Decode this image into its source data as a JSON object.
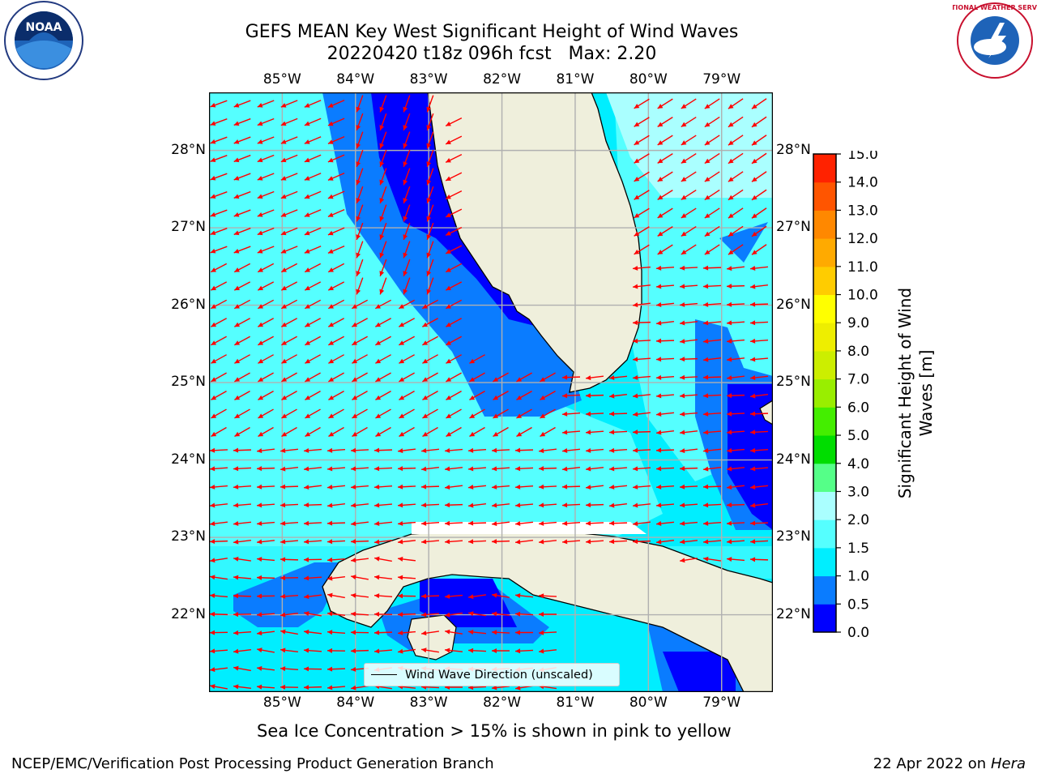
{
  "title": {
    "line1": "GEFS MEAN Key West Significant Height of Wind Waves",
    "line2": "20220420 t18z 096h fcst   Max: 2.20"
  },
  "logos": {
    "left": {
      "name": "noaa-logo",
      "text": "NOAA"
    },
    "right": {
      "name": "nws-logo",
      "text": "NATIONAL WEATHER SERVICE"
    }
  },
  "map": {
    "lon_labels": [
      "85°W",
      "84°W",
      "83°W",
      "82°W",
      "81°W",
      "80°W",
      "79°W"
    ],
    "lon_values": [
      -85,
      -84,
      -83,
      -82,
      -81,
      -80,
      -79
    ],
    "lat_labels": [
      "28°N",
      "27°N",
      "26°N",
      "25°N",
      "24°N",
      "23°N",
      "22°N"
    ],
    "lat_values": [
      28,
      27,
      26,
      25,
      24,
      23,
      22
    ],
    "lon_range": [
      -86.0,
      -78.3
    ],
    "lat_range": [
      21.0,
      28.75
    ],
    "land_color": "#efefdc",
    "arrow_color": "#ff0000",
    "gridlines": true
  },
  "legend": {
    "label": "Wind Wave Direction (unscaled)"
  },
  "colorbar": {
    "label_line1": "Significant Height of Wind",
    "label_line2": "Waves [m]",
    "ticks": [
      "0.0",
      "0.5",
      "1.0",
      "1.5",
      "2.0",
      "3.0",
      "4.0",
      "5.0",
      "6.0",
      "7.0",
      "8.0",
      "9.0",
      "10.0",
      "11.0",
      "12.0",
      "13.0",
      "14.0",
      "15.0"
    ],
    "colors": [
      "#0000ff",
      "#0a7cff",
      "#00eeff",
      "#55ffff",
      "#aaffff",
      "#55ff88",
      "#00dd00",
      "#44ee00",
      "#99ee00",
      "#ccee00",
      "#eeee00",
      "#ffff00",
      "#ffcc00",
      "#ffaa00",
      "#ff8800",
      "#ff5500",
      "#ff2200"
    ]
  },
  "footnote": "Sea Ice Concentration > 15% is shown in pink to yellow",
  "footer": {
    "left": "NCEP/EMC/Verification Post Processing Product Generation Branch",
    "right_prefix": "22 Apr 2022 on ",
    "right_host": "Hera"
  }
}
